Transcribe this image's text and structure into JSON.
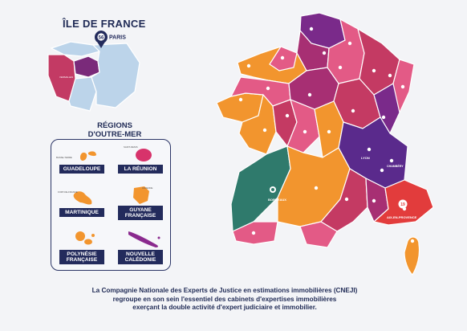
{
  "ile_de_france": {
    "title": "ÎLE DE FRANCE",
    "pin_count": "56",
    "pin_city": "PARIS",
    "secondary_city": "VERSAILLES",
    "colors": {
      "versailles": "#c33a64",
      "paris": "#7a2a7a",
      "other": "#bcd4ea",
      "pin": "#232b5c"
    }
  },
  "overseas": {
    "title_line1": "RÉGIONS",
    "title_line2": "D'OUTRE-MER",
    "regions": [
      {
        "label": "GUADELOUPE",
        "city": "BASSE-TERRE",
        "color": "#f2952e",
        "icon": "guadeloupe-shape"
      },
      {
        "label": "LA RÉUNION",
        "city": "SAINT-DENIS",
        "color": "#d7336b",
        "icon": "reunion-shape"
      },
      {
        "label": "MARTINIQUE",
        "city": "FORT-DE-FRANCE",
        "color": "#f2952e",
        "icon": "martinique-shape"
      },
      {
        "label": "GUYANE FRANÇAISE",
        "city": "CAYENNE",
        "color": "#f2952e",
        "icon": "guyane-shape"
      },
      {
        "label": "POLYNÉSIE FRANÇAISE",
        "city": "",
        "color": "#f2952e",
        "icon": "polynesie-shape"
      },
      {
        "label": "NOUVELLE CALÉDONIE",
        "city": "",
        "color": "#8a2a8e",
        "icon": "caledonie-shape"
      }
    ]
  },
  "france": {
    "cities": [
      {
        "name": "BORDEAUX"
      },
      {
        "name": "LYON"
      },
      {
        "name": "AIX-EN-PROVENCE"
      },
      {
        "name": "CHAMBÉRY"
      }
    ],
    "aix_pin_count": "19",
    "colors": {
      "orange": "#f2952e",
      "pink": "#e35a86",
      "crimson": "#c43a63",
      "magenta": "#a72f73",
      "purple": "#7a2a8a",
      "violet": "#5a2a8c",
      "teal": "#2f7a6c",
      "red": "#e23c3c"
    }
  },
  "caption": {
    "line1": "La Compagnie Nationale des Experts de Justice en estimations immobilières (CNEJI)",
    "line2": "regroupe en son sein l'essentiel des cabinets d'expertises immobilières",
    "line3": "exerçant la double activité d'expert judiciaire et immobilier."
  }
}
